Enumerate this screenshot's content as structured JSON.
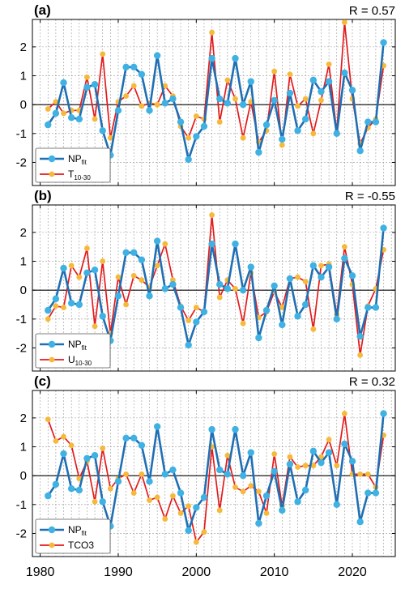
{
  "colors": {
    "np_line": "#1f6fb4",
    "np_marker": "#3fb1e3",
    "other_line": "#e41a1c",
    "other_marker": "#f6b93b",
    "grid": "#9a9a9a",
    "zero": "#000000"
  },
  "chart_data": [
    {
      "type": "line",
      "panel_label": "(a)",
      "r_text": "R = 0.57",
      "xlim": [
        1979,
        2025.5
      ],
      "ylim": [
        -2.8,
        2.95
      ],
      "yticks": [
        -2,
        -1,
        0,
        1,
        2
      ],
      "xticks": [
        1980,
        1990,
        2000,
        2010,
        2020
      ],
      "legend_position": "bottom-left",
      "x": [
        1981,
        1982,
        1983,
        1984,
        1985,
        1986,
        1987,
        1988,
        1989,
        1990,
        1991,
        1992,
        1993,
        1994,
        1995,
        1996,
        1997,
        1998,
        1999,
        2000,
        2001,
        2002,
        2003,
        2004,
        2005,
        2006,
        2007,
        2008,
        2009,
        2010,
        2011,
        2012,
        2013,
        2014,
        2015,
        2016,
        2017,
        2018,
        2019,
        2020,
        2021,
        2022,
        2023,
        2024
      ],
      "series": [
        {
          "name": "NP",
          "name_sub": "fit",
          "values": [
            -0.7,
            -0.3,
            0.76,
            -0.45,
            -0.5,
            0.6,
            0.7,
            -0.9,
            -1.75,
            -0.2,
            1.3,
            1.3,
            1.05,
            -0.2,
            1.7,
            0.05,
            0.2,
            -0.6,
            -1.9,
            -1.1,
            -0.75,
            1.6,
            0.2,
            0.05,
            1.6,
            0.0,
            0.8,
            -1.65,
            -0.7,
            0.15,
            -1.2,
            0.4,
            -0.9,
            -0.5,
            0.85,
            0.45,
            0.8,
            -1.0,
            1.1,
            0.5,
            -1.6,
            -0.6,
            -0.6,
            2.15
          ]
        },
        {
          "name": "T",
          "name_sub": "10-30",
          "values": [
            -0.15,
            0.1,
            -0.3,
            -0.2,
            -0.2,
            0.95,
            -0.5,
            1.75,
            -1.15,
            0.1,
            0.3,
            0.65,
            -0.05,
            0.05,
            0.0,
            0.65,
            0.3,
            -0.75,
            -1.15,
            -0.4,
            -0.5,
            2.5,
            -0.6,
            0.85,
            0.2,
            -1.15,
            0.1,
            -1.3,
            -0.9,
            1.15,
            -1.4,
            1.05,
            -0.05,
            0.2,
            -1.0,
            0.15,
            1.4,
            -0.95,
            2.85,
            0.2,
            -1.35,
            -0.8,
            -0.5,
            1.35
          ]
        }
      ]
    },
    {
      "type": "line",
      "panel_label": "(b)",
      "r_text": "R = -0.55",
      "xlim": [
        1979,
        2025.5
      ],
      "ylim": [
        -2.8,
        2.95
      ],
      "yticks": [
        -2,
        -1,
        0,
        1,
        2
      ],
      "xticks": [
        1980,
        1990,
        2000,
        2010,
        2020
      ],
      "legend_position": "bottom-left",
      "x": [
        1981,
        1982,
        1983,
        1984,
        1985,
        1986,
        1987,
        1988,
        1989,
        1990,
        1991,
        1992,
        1993,
        1994,
        1995,
        1996,
        1997,
        1998,
        1999,
        2000,
        2001,
        2002,
        2003,
        2004,
        2005,
        2006,
        2007,
        2008,
        2009,
        2010,
        2011,
        2012,
        2013,
        2014,
        2015,
        2016,
        2017,
        2018,
        2019,
        2020,
        2021,
        2022,
        2023,
        2024
      ],
      "series": [
        {
          "name": "NP",
          "name_sub": "fit",
          "values": [
            -0.7,
            -0.3,
            0.76,
            -0.45,
            -0.5,
            0.6,
            0.7,
            -0.9,
            -1.75,
            -0.2,
            1.3,
            1.3,
            1.05,
            -0.2,
            1.7,
            0.05,
            0.2,
            -0.6,
            -1.9,
            -1.1,
            -0.75,
            1.6,
            0.2,
            0.05,
            1.6,
            0.0,
            0.8,
            -1.65,
            -0.7,
            0.15,
            -1.2,
            0.4,
            -0.9,
            -0.5,
            0.85,
            0.45,
            0.8,
            -1.0,
            1.1,
            0.5,
            -1.6,
            -0.6,
            -0.6,
            2.15
          ]
        },
        {
          "name": "U",
          "name_sub": "10-30",
          "values": [
            -1.0,
            -0.55,
            -0.6,
            0.85,
            0.45,
            1.45,
            -1.25,
            1.0,
            -1.5,
            0.45,
            -0.5,
            0.5,
            0.35,
            0.1,
            0.85,
            1.6,
            0.35,
            -0.55,
            -1.05,
            -0.6,
            -0.75,
            2.6,
            -0.25,
            0.35,
            0.05,
            -1.15,
            0.6,
            -0.95,
            -0.75,
            -0.05,
            -0.6,
            0.4,
            0.45,
            0.3,
            -1.35,
            0.85,
            0.9,
            -0.85,
            1.5,
            0.2,
            -2.25,
            -0.55,
            0.05,
            1.4
          ]
        }
      ]
    },
    {
      "type": "line",
      "panel_label": "(c)",
      "r_text": "R = 0.32",
      "xlim": [
        1979,
        2025.5
      ],
      "ylim": [
        -2.8,
        2.95
      ],
      "yticks": [
        -2,
        -1,
        0,
        1,
        2
      ],
      "xticks": [
        1980,
        1990,
        2000,
        2010,
        2020
      ],
      "xtick_labels_shown": true,
      "legend_position": "bottom-left",
      "x": [
        1981,
        1982,
        1983,
        1984,
        1985,
        1986,
        1987,
        1988,
        1989,
        1990,
        1991,
        1992,
        1993,
        1994,
        1995,
        1996,
        1997,
        1998,
        1999,
        2000,
        2001,
        2002,
        2003,
        2004,
        2005,
        2006,
        2007,
        2008,
        2009,
        2010,
        2011,
        2012,
        2013,
        2014,
        2015,
        2016,
        2017,
        2018,
        2019,
        2020,
        2021,
        2022,
        2023,
        2024
      ],
      "series": [
        {
          "name": "NP",
          "name_sub": "fit",
          "values": [
            -0.7,
            -0.3,
            0.76,
            -0.45,
            -0.5,
            0.6,
            0.7,
            -0.9,
            -1.75,
            -0.2,
            1.3,
            1.3,
            1.05,
            -0.2,
            1.7,
            0.05,
            0.2,
            -0.6,
            -1.9,
            -1.1,
            -0.75,
            1.6,
            0.2,
            0.05,
            1.6,
            0.0,
            0.8,
            -1.65,
            -0.7,
            0.15,
            -1.2,
            0.4,
            -0.9,
            -0.5,
            0.85,
            0.45,
            0.8,
            -1.0,
            1.1,
            0.5,
            -1.6,
            -0.6,
            -0.6,
            2.15
          ]
        },
        {
          "name": "TCO3",
          "name_sub": "",
          "values": [
            1.95,
            1.2,
            1.35,
            1.05,
            -0.1,
            0.5,
            -0.9,
            0.95,
            -0.45,
            -0.1,
            0.05,
            -0.6,
            0.05,
            -0.85,
            -0.75,
            -1.5,
            -0.7,
            -1.3,
            -1.05,
            -2.3,
            -1.95,
            1.0,
            -1.2,
            0.7,
            -0.4,
            -0.55,
            -0.35,
            -0.55,
            -1.3,
            0.75,
            -1.05,
            0.65,
            0.3,
            0.35,
            0.35,
            0.65,
            1.25,
            0.35,
            2.15,
            0.05,
            0.05,
            0.05,
            -0.4,
            1.4
          ]
        }
      ]
    }
  ]
}
